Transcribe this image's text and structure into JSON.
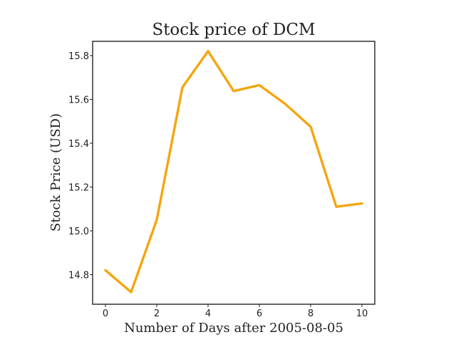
{
  "chart_data": {
    "type": "line",
    "title": "Stock price of DCM",
    "xlabel": "Number of Days after 2005-08-05",
    "ylabel": "Stock Price (USD)",
    "x": [
      0,
      1,
      2,
      3,
      4,
      5,
      6,
      7,
      8,
      9,
      10
    ],
    "series": [
      {
        "values": [
          14.82,
          14.72,
          15.05,
          15.655,
          15.82,
          15.638,
          15.665,
          15.58,
          15.475,
          15.11,
          15.125
        ],
        "color": "#f5a50f"
      }
    ],
    "xlim": [
      -0.5,
      10.5
    ],
    "ylim": [
      14.665,
      15.865
    ],
    "xticks": [
      0,
      2,
      4,
      6,
      8,
      10
    ],
    "yticks": [
      14.8,
      15.0,
      15.2,
      15.4,
      15.6,
      15.8
    ],
    "xtick_labels": [
      "0",
      "2",
      "4",
      "6",
      "8",
      "10"
    ],
    "ytick_labels": [
      "14.8",
      "15.0",
      "15.2",
      "15.4",
      "15.6",
      "15.8"
    ],
    "grid": false,
    "legend": "none"
  }
}
